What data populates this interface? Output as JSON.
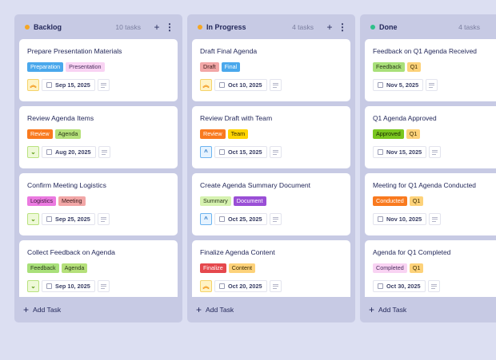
{
  "add_task_label": "Add Task",
  "columns": [
    {
      "name": "Backlog",
      "count": "10 tasks",
      "dot": "#f5a623",
      "cards": [
        {
          "title": "Prepare Presentation Materials",
          "tags": [
            {
              "label": "Preparation",
              "bg": "#4aa8ec",
              "fg": "#fff"
            },
            {
              "label": "Presentation",
              "bg": "#f9d3f3",
              "fg": "#4a2f5e"
            }
          ],
          "priority": "highest",
          "date": "Sep 15, 2025"
        },
        {
          "title": "Review Agenda Items",
          "tags": [
            {
              "label": "Review",
              "bg": "#f97a1f",
              "fg": "#fff"
            },
            {
              "label": "Agenda",
              "bg": "#b5e07a",
              "fg": "#2b3a1a"
            }
          ],
          "priority": "low",
          "date": "Aug 20, 2025"
        },
        {
          "title": "Confirm Meeting Logistics",
          "tags": [
            {
              "label": "Logistics",
              "bg": "#eb7ae0",
              "fg": "#3a1a3a"
            },
            {
              "label": "Meeting",
              "bg": "#f2a7a7",
              "fg": "#3a1a1a"
            }
          ],
          "priority": "low",
          "date": "Sep 25, 2025"
        },
        {
          "title": "Collect Feedback on Agenda",
          "tags": [
            {
              "label": "Feedback",
              "bg": "#a9e07a",
              "fg": "#2b3a1a"
            },
            {
              "label": "Agenda",
              "bg": "#b5e07a",
              "fg": "#2b3a1a"
            }
          ],
          "priority": "low",
          "date": "Sep 10, 2025"
        }
      ],
      "show_add": true
    },
    {
      "name": "In Progress",
      "count": "4 tasks",
      "dot": "#f5a623",
      "cards": [
        {
          "title": "Draft Final Agenda",
          "tags": [
            {
              "label": "Draft",
              "bg": "#f2a7a7",
              "fg": "#3a1a1a"
            },
            {
              "label": "Final",
              "bg": "#4aa8ec",
              "fg": "#fff"
            }
          ],
          "priority": "highest",
          "date": "Oct 10, 2025"
        },
        {
          "title": "Review Draft with Team",
          "tags": [
            {
              "label": "Review",
              "bg": "#f97a1f",
              "fg": "#fff"
            },
            {
              "label": "Team",
              "bg": "#ffd400",
              "fg": "#3a3000"
            }
          ],
          "priority": "medium",
          "date": "Oct 15, 2025"
        },
        {
          "title": "Create Agenda Summary Document",
          "tags": [
            {
              "label": "Summary",
              "bg": "#d6f2b0",
              "fg": "#2b3a1a"
            },
            {
              "label": "Document",
              "bg": "#9a4fd6",
              "fg": "#fff"
            }
          ],
          "priority": "medium",
          "date": "Oct 25, 2025"
        },
        {
          "title": "Finalize Agenda Content",
          "tags": [
            {
              "label": "Finalize",
              "bg": "#e5484d",
              "fg": "#fff"
            },
            {
              "label": "Content",
              "bg": "#fdd27a",
              "fg": "#3a2a00"
            }
          ],
          "priority": "highest",
          "date": "Oct 20, 2025"
        }
      ],
      "show_add": true
    },
    {
      "name": "Done",
      "count": "4 tasks",
      "dot": "#2ec08a",
      "cards": [
        {
          "title": "Feedback on Q1 Agenda Received",
          "tags": [
            {
              "label": "Feedback",
              "bg": "#a9e07a",
              "fg": "#2b3a1a"
            },
            {
              "label": "Q1",
              "bg": "#fdd27a",
              "fg": "#3a2a00"
            }
          ],
          "priority": "",
          "date": "Nov 5, 2025"
        },
        {
          "title": "Q1 Agenda Approved",
          "tags": [
            {
              "label": "Approved",
              "bg": "#7ac61f",
              "fg": "#1a2a00"
            },
            {
              "label": "Q1",
              "bg": "#fdd27a",
              "fg": "#3a2a00"
            }
          ],
          "priority": "",
          "date": "Nov 15, 2025"
        },
        {
          "title": "Meeting for Q1 Agenda Conducted",
          "tags": [
            {
              "label": "Conducted",
              "bg": "#f97a1f",
              "fg": "#fff"
            },
            {
              "label": "Q1",
              "bg": "#fdd27a",
              "fg": "#3a2a00"
            }
          ],
          "priority": "",
          "date": "Nov 10, 2025"
        },
        {
          "title": "Agenda for Q1 Completed",
          "tags": [
            {
              "label": "Completed",
              "bg": "#f9d3f3",
              "fg": "#4a2f5e"
            },
            {
              "label": "Q1",
              "bg": "#fdd27a",
              "fg": "#3a2a00"
            }
          ],
          "priority": "",
          "date": "Oct 30, 2025"
        }
      ],
      "show_add": false
    }
  ],
  "priority_styles": {
    "highest": {
      "glyph": "︽",
      "bg": "#fff3c4",
      "border": "#f5d36a",
      "fg": "#f08a00"
    },
    "medium": {
      "glyph": "^",
      "bg": "#e6f3ff",
      "border": "#6db4f0",
      "fg": "#1f6fbf"
    },
    "low": {
      "glyph": "⌄",
      "bg": "#eef9d8",
      "border": "#b9e27f",
      "fg": "#5a9a10"
    }
  }
}
